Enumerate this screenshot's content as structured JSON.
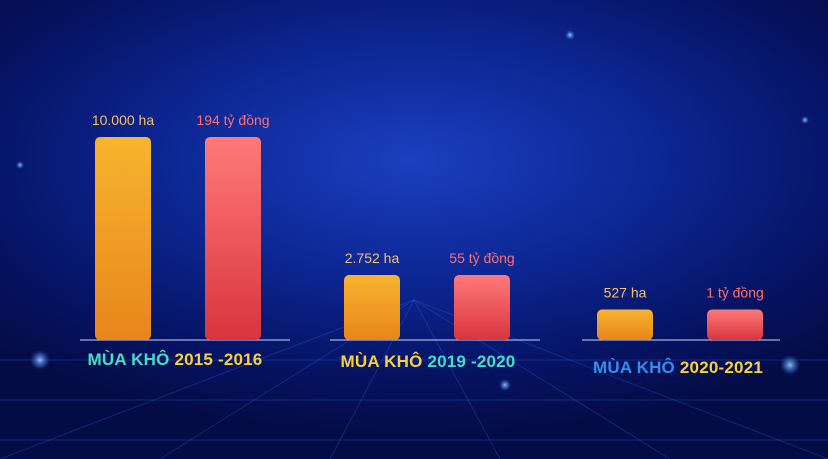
{
  "colors": {
    "area_bar_top": "#f7b52e",
    "area_bar_bottom": "#e8851c",
    "money_bar_top": "#ff7a7a",
    "money_bar_bottom": "#d9343e",
    "area_label": "#f6c36a",
    "money_label": "#ff6f6f"
  },
  "chart_data": {
    "type": "bar",
    "categories": [
      "Mùa khô 2015 -2016",
      "Mùa khô 2019 -2020",
      "Mùa khô 2020-2021"
    ],
    "series": [
      {
        "values": [
          10000,
          2752,
          527
        ],
        "data_labels": [
          "10.000 ha",
          "2.752 ha",
          "527 ha"
        ]
      },
      {
        "values": [
          194,
          55,
          1
        ],
        "data_labels": [
          "194 tỷ đồng",
          "55 tỷ đồng",
          "1 tỷ đồng"
        ]
      }
    ],
    "groups": [
      {
        "prefix": "MÙA KHÔ",
        "years": "2015 -2016",
        "prefix_color": "#3fe0c8",
        "years_color": "#f7d23a"
      },
      {
        "prefix": "MÙA KHÔ",
        "years": "2019 -2020",
        "prefix_color": "#f7d23a",
        "years_color": "#3fe0c8"
      },
      {
        "prefix": "MÙA KHÔ",
        "years": "2020-2021",
        "prefix_color": "#2f8ff0",
        "years_color": "#f7d23a"
      }
    ],
    "bar_heights_relative": [
      [
        1.0,
        1.0
      ],
      [
        0.32,
        0.32
      ],
      [
        0.15,
        0.15
      ]
    ]
  }
}
